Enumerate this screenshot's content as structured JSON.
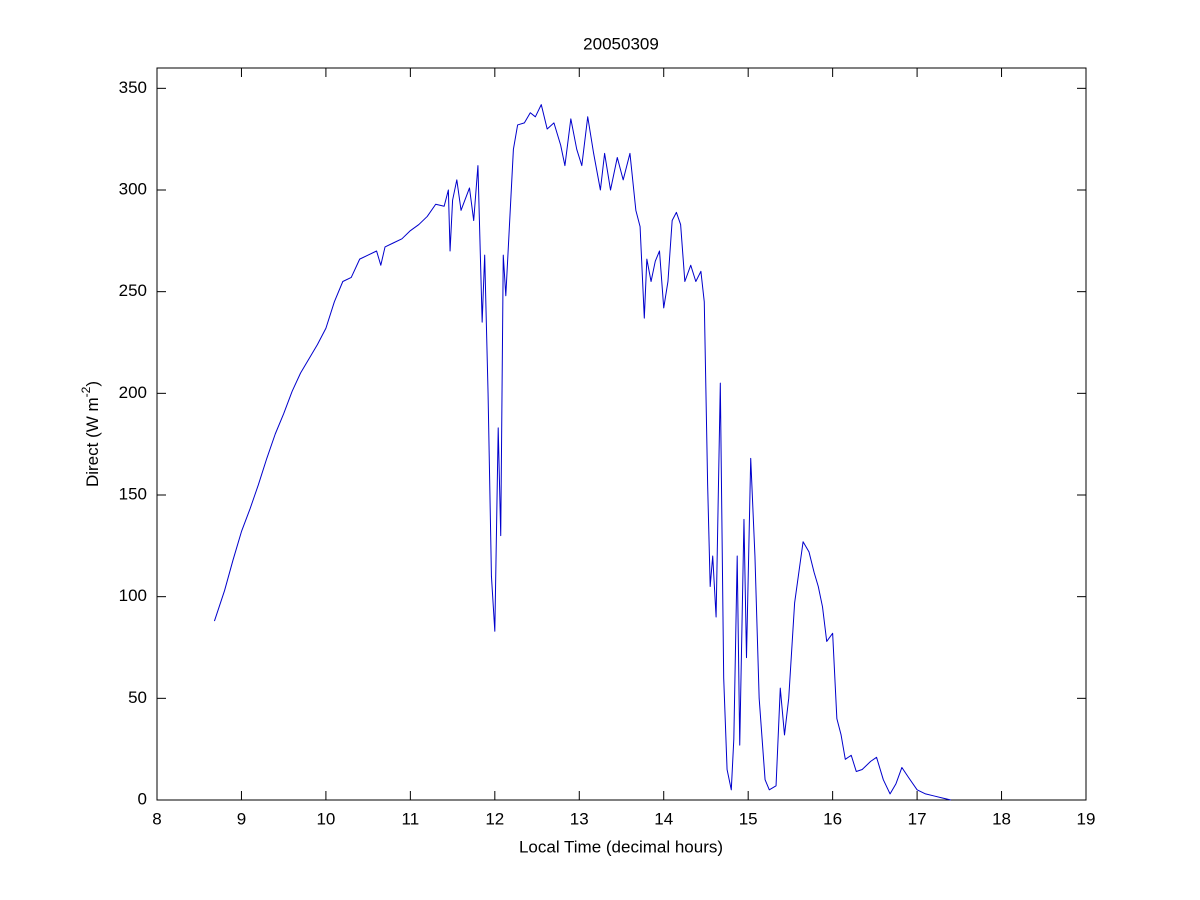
{
  "chart_data": {
    "type": "line",
    "title": "20050309",
    "xlabel": "Local Time (decimal hours)",
    "ylabel": {
      "text": "Direct (W m",
      "superscript": "-2",
      "suffix": ")"
    },
    "xlim": [
      8,
      19
    ],
    "xticks": [
      8,
      9,
      10,
      11,
      12,
      13,
      14,
      15,
      16,
      17,
      18,
      19
    ],
    "ylim": [
      0,
      360
    ],
    "yticks": [
      0,
      50,
      100,
      150,
      200,
      250,
      300,
      350
    ],
    "grid": false,
    "series": [
      {
        "color": "#0000cc",
        "x": [
          8.68,
          8.8,
          8.9,
          9.0,
          9.1,
          9.2,
          9.3,
          9.4,
          9.5,
          9.6,
          9.7,
          9.8,
          9.9,
          10.0,
          10.1,
          10.2,
          10.3,
          10.4,
          10.5,
          10.6,
          10.65,
          10.7,
          10.8,
          10.9,
          11.0,
          11.1,
          11.2,
          11.3,
          11.4,
          11.45,
          11.47,
          11.5,
          11.55,
          11.6,
          11.7,
          11.75,
          11.8,
          11.85,
          11.88,
          11.92,
          11.96,
          12.0,
          12.04,
          12.07,
          12.1,
          12.13,
          12.17,
          12.22,
          12.27,
          12.35,
          12.42,
          12.48,
          12.55,
          12.62,
          12.7,
          12.78,
          12.83,
          12.9,
          12.97,
          13.03,
          13.1,
          13.17,
          13.25,
          13.3,
          13.37,
          13.45,
          13.52,
          13.6,
          13.67,
          13.72,
          13.77,
          13.8,
          13.85,
          13.9,
          13.95,
          14.0,
          14.05,
          14.1,
          14.15,
          14.2,
          14.25,
          14.32,
          14.38,
          14.44,
          14.48,
          14.52,
          14.55,
          14.58,
          14.62,
          14.67,
          14.71,
          14.75,
          14.8,
          14.83,
          14.87,
          14.9,
          14.95,
          14.98,
          15.03,
          15.08,
          15.13,
          15.2,
          15.25,
          15.33,
          15.38,
          15.43,
          15.48,
          15.55,
          15.6,
          15.65,
          15.72,
          15.78,
          15.83,
          15.88,
          15.93,
          16.0,
          16.05,
          16.1,
          16.15,
          16.22,
          16.28,
          16.35,
          16.45,
          16.52,
          16.6,
          16.68,
          16.75,
          16.82,
          16.9,
          17.0,
          17.1,
          17.2,
          17.3,
          17.4
        ],
        "values": [
          88,
          103,
          118,
          132,
          143,
          155,
          168,
          180,
          190,
          201,
          210,
          217,
          224,
          232,
          245,
          255,
          257,
          266,
          268,
          270,
          263,
          272,
          274,
          276,
          280,
          283,
          287,
          293,
          292,
          300,
          270,
          295,
          305,
          290,
          301,
          285,
          312,
          235,
          268,
          200,
          110,
          83,
          183,
          130,
          268,
          248,
          280,
          320,
          332,
          333,
          338,
          336,
          342,
          330,
          333,
          322,
          312,
          335,
          320,
          312,
          336,
          318,
          300,
          318,
          300,
          316,
          305,
          318,
          290,
          282,
          237,
          266,
          255,
          265,
          270,
          242,
          255,
          285,
          289,
          283,
          255,
          263,
          255,
          260,
          245,
          155,
          105,
          120,
          90,
          205,
          60,
          15,
          5,
          30,
          120,
          27,
          138,
          70,
          168,
          120,
          50,
          10,
          5,
          7,
          55,
          32,
          50,
          97,
          112,
          127,
          122,
          112,
          105,
          95,
          78,
          82,
          40,
          32,
          20,
          22,
          14,
          15,
          19,
          21,
          10,
          3,
          8,
          16,
          11,
          5,
          3,
          2,
          1,
          0
        ]
      }
    ]
  }
}
